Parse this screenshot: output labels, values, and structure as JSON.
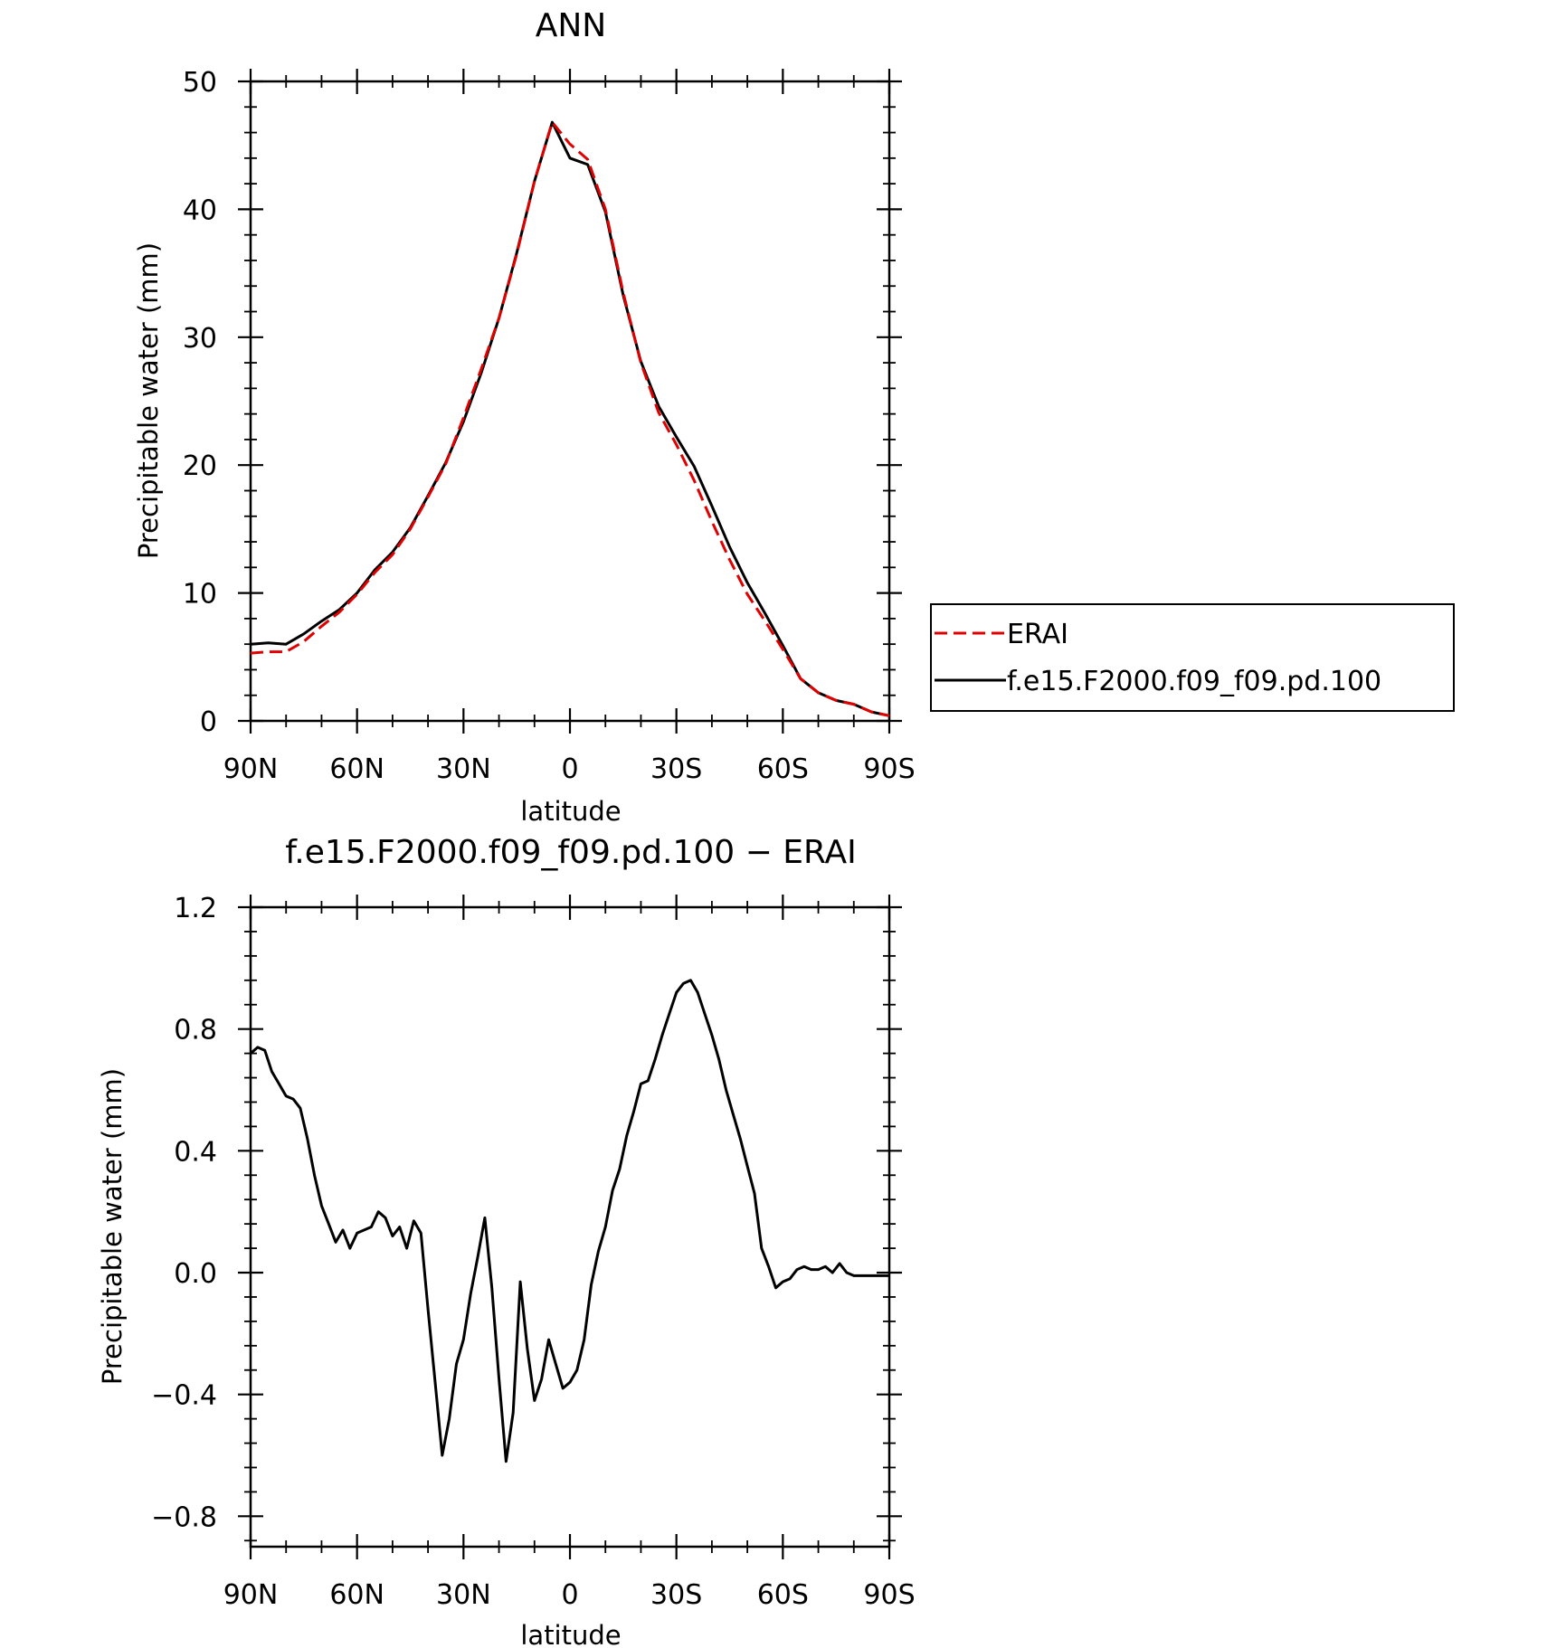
{
  "chart_data": [
    {
      "type": "line",
      "title": "ANN",
      "xlabel": "latitude",
      "ylabel": "Precipitable water (mm)",
      "xlim": [
        90,
        -90
      ],
      "ylim": [
        0,
        50
      ],
      "x_ticks": [
        90,
        60,
        30,
        0,
        -30,
        -60,
        -90
      ],
      "x_tick_labels": [
        "90N",
        "60N",
        "30N",
        "0",
        "30S",
        "60S",
        "90S"
      ],
      "y_ticks": [
        0,
        10,
        20,
        30,
        40,
        50
      ],
      "y_tick_labels": [
        "0",
        "10",
        "20",
        "30",
        "40",
        "50"
      ],
      "legend_position": "right",
      "grid": false,
      "series": [
        {
          "name": "ERAI",
          "color": "#e00000",
          "style": "dashed",
          "x": [
            90,
            85,
            80,
            75,
            70,
            65,
            60,
            55,
            50,
            45,
            40,
            35,
            30,
            25,
            20,
            15,
            10,
            5,
            0,
            -5,
            -10,
            -15,
            -20,
            -25,
            -30,
            -35,
            -40,
            -45,
            -50,
            -55,
            -60,
            -65,
            -70,
            -75,
            -80,
            -85,
            -90
          ],
          "y": [
            5.3,
            5.4,
            5.4,
            6.2,
            7.4,
            8.5,
            9.9,
            11.6,
            13.0,
            15.0,
            17.5,
            20.1,
            23.7,
            27.5,
            31.5,
            36.5,
            42.2,
            46.8,
            45.1,
            43.9,
            40.0,
            33.5,
            28.0,
            24.1,
            21.6,
            18.8,
            15.6,
            12.6,
            9.9,
            7.8,
            5.6,
            3.3,
            2.2,
            1.6,
            1.3,
            0.7,
            0.4
          ]
        },
        {
          "name": "f.e15.F2000.f09_f09.pd.100",
          "color": "#000000",
          "style": "solid",
          "x": [
            90,
            85,
            80,
            75,
            70,
            65,
            60,
            55,
            50,
            45,
            40,
            35,
            30,
            25,
            20,
            15,
            10,
            5,
            0,
            -5,
            -10,
            -15,
            -20,
            -25,
            -30,
            -35,
            -40,
            -45,
            -50,
            -55,
            -60,
            -65,
            -70,
            -75,
            -80,
            -85,
            -90
          ],
          "y": [
            6.0,
            6.1,
            6.0,
            6.8,
            7.8,
            8.7,
            10.0,
            11.8,
            13.2,
            15.1,
            17.6,
            20.2,
            23.4,
            27.2,
            31.5,
            36.6,
            42.2,
            46.8,
            44.0,
            43.5,
            39.8,
            33.3,
            28.1,
            24.6,
            22.2,
            19.9,
            16.8,
            13.6,
            10.8,
            8.4,
            5.9,
            3.3,
            2.2,
            1.6,
            1.3,
            0.7,
            0.4
          ]
        }
      ]
    },
    {
      "type": "line",
      "title": "f.e15.F2000.f09_f09.pd.100 − ERAI",
      "xlabel": "latitude",
      "ylabel": "Precipitable water (mm)",
      "xlim": [
        90,
        -90
      ],
      "ylim": [
        -0.9,
        1.2
      ],
      "x_ticks": [
        90,
        60,
        30,
        0,
        -30,
        -60,
        -90
      ],
      "x_tick_labels": [
        "90N",
        "60N",
        "30N",
        "0",
        "30S",
        "60S",
        "90S"
      ],
      "y_ticks": [
        1.2,
        0.8,
        0.4,
        0.0,
        -0.4,
        -0.8
      ],
      "y_tick_labels": [
        "1.2",
        "0.8",
        "0.4",
        "0.0",
        "−0.4",
        "−0.8"
      ],
      "grid": false,
      "series": [
        {
          "color": "#000000",
          "style": "solid",
          "x": [
            90,
            88,
            86,
            84,
            82,
            80,
            78,
            76,
            74,
            72,
            70,
            68,
            66,
            64,
            62,
            60,
            58,
            56,
            54,
            52,
            50,
            48,
            46,
            44,
            42,
            40,
            38,
            36,
            34,
            32,
            30,
            28,
            26,
            24,
            22,
            20,
            18,
            16,
            14,
            12,
            10,
            8,
            6,
            4,
            2,
            0,
            -2,
            -4,
            -6,
            -8,
            -10,
            -12,
            -14,
            -16,
            -18,
            -20,
            -22,
            -24,
            -26,
            -28,
            -30,
            -32,
            -34,
            -36,
            -38,
            -40,
            -42,
            -44,
            -46,
            -48,
            -50,
            -52,
            -54,
            -56,
            -58,
            -60,
            -62,
            -64,
            -66,
            -68,
            -70,
            -72,
            -74,
            -76,
            -78,
            -80,
            -82,
            -84,
            -86,
            -88,
            -90
          ],
          "y": [
            0.72,
            0.74,
            0.73,
            0.66,
            0.62,
            0.58,
            0.57,
            0.54,
            0.44,
            0.32,
            0.22,
            0.16,
            0.1,
            0.14,
            0.08,
            0.13,
            0.14,
            0.15,
            0.2,
            0.18,
            0.12,
            0.15,
            0.08,
            0.17,
            0.13,
            -0.12,
            -0.36,
            -0.6,
            -0.48,
            -0.3,
            -0.22,
            -0.07,
            0.05,
            0.18,
            -0.05,
            -0.35,
            -0.62,
            -0.46,
            -0.03,
            -0.25,
            -0.42,
            -0.35,
            -0.22,
            -0.3,
            -0.38,
            -0.36,
            -0.32,
            -0.22,
            -0.04,
            0.07,
            0.15,
            0.27,
            0.34,
            0.45,
            0.53,
            0.62,
            0.63,
            0.7,
            0.78,
            0.85,
            0.92,
            0.95,
            0.96,
            0.92,
            0.85,
            0.78,
            0.7,
            0.6,
            0.52,
            0.44,
            0.35,
            0.26,
            0.08,
            0.02,
            -0.05,
            -0.03,
            -0.02,
            0.01,
            0.02,
            0.01,
            0.01,
            0.02,
            0.0,
            0.03,
            0.0,
            -0.01,
            -0.01,
            -0.01,
            -0.01,
            -0.01,
            -0.01
          ]
        }
      ]
    }
  ]
}
